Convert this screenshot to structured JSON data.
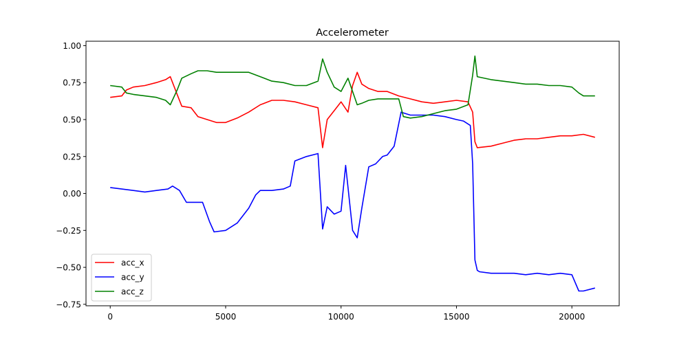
{
  "chart_data": {
    "type": "line",
    "title": "Accelerometer",
    "xlabel": "",
    "ylabel": "",
    "xlim": [
      -1050,
      22050
    ],
    "ylim": [
      -0.76,
      1.03
    ],
    "xticks": [
      0,
      5000,
      10000,
      15000,
      20000
    ],
    "xtick_labels": [
      "0",
      "5000",
      "10000",
      "15000",
      "20000"
    ],
    "yticks": [
      1.0,
      0.75,
      0.5,
      0.25,
      0.0,
      -0.25,
      -0.5,
      -0.75
    ],
    "ytick_labels": [
      "1.00",
      "0.75",
      "0.50",
      "0.25",
      "0.00",
      "−0.25",
      "−0.50",
      "−0.75"
    ],
    "grid": false,
    "legend_position": "lower-left",
    "series": [
      {
        "name": "acc_x",
        "color": "#ff0000",
        "x": [
          0,
          500,
          700,
          1000,
          1500,
          2000,
          2400,
          2600,
          2900,
          3100,
          3500,
          3800,
          4200,
          4600,
          5000,
          5500,
          6000,
          6500,
          7000,
          7500,
          8000,
          8500,
          9000,
          9200,
          9400,
          9700,
          10000,
          10300,
          10500,
          10700,
          10900,
          11200,
          11600,
          12000,
          12500,
          13000,
          13500,
          14000,
          14500,
          15000,
          15500,
          15700,
          15800,
          15900,
          16500,
          17000,
          17500,
          18000,
          18500,
          19000,
          19500,
          20000,
          20500,
          21000
        ],
        "y": [
          0.65,
          0.66,
          0.7,
          0.72,
          0.73,
          0.75,
          0.77,
          0.79,
          0.67,
          0.59,
          0.58,
          0.52,
          0.5,
          0.48,
          0.48,
          0.51,
          0.55,
          0.6,
          0.63,
          0.63,
          0.62,
          0.6,
          0.58,
          0.31,
          0.5,
          0.56,
          0.62,
          0.55,
          0.73,
          0.82,
          0.74,
          0.71,
          0.69,
          0.69,
          0.66,
          0.64,
          0.62,
          0.61,
          0.62,
          0.63,
          0.62,
          0.55,
          0.35,
          0.31,
          0.32,
          0.34,
          0.36,
          0.37,
          0.37,
          0.38,
          0.39,
          0.39,
          0.4,
          0.38
        ]
      },
      {
        "name": "acc_y",
        "color": "#0000ff",
        "x": [
          0,
          500,
          1000,
          1500,
          2000,
          2500,
          2700,
          3000,
          3300,
          3500,
          4000,
          4300,
          4500,
          5000,
          5500,
          6000,
          6300,
          6500,
          7000,
          7500,
          7800,
          8000,
          8500,
          9000,
          9200,
          9400,
          9700,
          10000,
          10200,
          10500,
          10700,
          10900,
          11200,
          11500,
          11800,
          12000,
          12300,
          12600,
          12800,
          13000,
          13500,
          14000,
          14500,
          15000,
          15300,
          15600,
          15700,
          15800,
          15900,
          16000,
          16500,
          17000,
          17500,
          18000,
          18500,
          19000,
          19500,
          20000,
          20300,
          20500,
          21000
        ],
        "y": [
          0.04,
          0.03,
          0.02,
          0.01,
          0.02,
          0.03,
          0.05,
          0.02,
          -0.06,
          -0.06,
          -0.06,
          -0.19,
          -0.26,
          -0.25,
          -0.2,
          -0.1,
          -0.01,
          0.02,
          0.02,
          0.03,
          0.05,
          0.22,
          0.25,
          0.27,
          -0.24,
          -0.09,
          -0.14,
          -0.12,
          0.19,
          -0.25,
          -0.3,
          -0.1,
          0.18,
          0.2,
          0.25,
          0.26,
          0.32,
          0.55,
          0.54,
          0.53,
          0.53,
          0.53,
          0.52,
          0.5,
          0.49,
          0.46,
          0.2,
          -0.45,
          -0.52,
          -0.53,
          -0.54,
          -0.54,
          -0.54,
          -0.55,
          -0.54,
          -0.55,
          -0.54,
          -0.55,
          -0.66,
          -0.66,
          -0.64
        ]
      },
      {
        "name": "acc_z",
        "color": "#008000",
        "x": [
          0,
          500,
          700,
          1000,
          1500,
          2000,
          2400,
          2600,
          2900,
          3100,
          3500,
          3800,
          4200,
          4600,
          5000,
          5500,
          6000,
          6500,
          7000,
          7500,
          8000,
          8500,
          9000,
          9200,
          9400,
          9700,
          10000,
          10300,
          10500,
          10700,
          10900,
          11200,
          11600,
          12000,
          12500,
          12700,
          13000,
          13500,
          14000,
          14500,
          15000,
          15500,
          15700,
          15800,
          15900,
          16500,
          17000,
          17500,
          18000,
          18500,
          19000,
          19500,
          20000,
          20300,
          20500,
          21000
        ],
        "y": [
          0.73,
          0.72,
          0.68,
          0.67,
          0.66,
          0.65,
          0.63,
          0.6,
          0.7,
          0.78,
          0.81,
          0.83,
          0.83,
          0.82,
          0.82,
          0.82,
          0.82,
          0.79,
          0.76,
          0.75,
          0.73,
          0.73,
          0.76,
          0.91,
          0.82,
          0.72,
          0.69,
          0.78,
          0.69,
          0.6,
          0.61,
          0.63,
          0.64,
          0.64,
          0.64,
          0.52,
          0.51,
          0.52,
          0.54,
          0.56,
          0.57,
          0.6,
          0.8,
          0.93,
          0.79,
          0.77,
          0.76,
          0.75,
          0.74,
          0.74,
          0.73,
          0.73,
          0.72,
          0.68,
          0.66,
          0.66
        ]
      }
    ]
  }
}
